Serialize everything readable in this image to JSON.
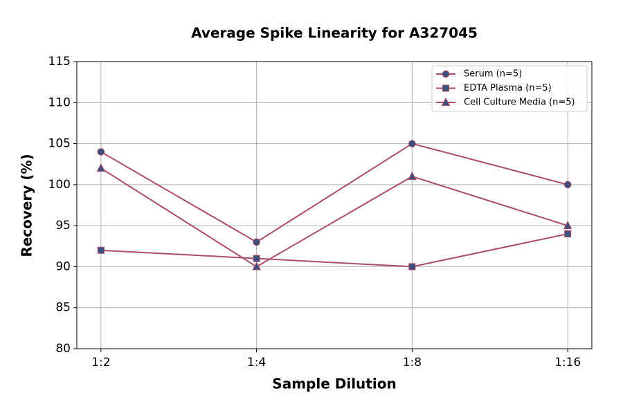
{
  "chart_data": {
    "type": "line",
    "title": "Average Spike Linearity for A327045",
    "x_label": "Sample Dilution",
    "y_label": "Recovery (%)",
    "categories": [
      "1:2",
      "1:4",
      "1:8",
      "1:16"
    ],
    "series": [
      {
        "name": "Serum (n=5)",
        "color": "#a94a6e",
        "marker": "circle",
        "marker_color": "#3d4f7c",
        "values": [
          104,
          93,
          105,
          100
        ]
      },
      {
        "name": "EDTA Plasma (n=5)",
        "color": "#a94a6e",
        "marker": "square",
        "marker_color": "#3d4f7c",
        "values": [
          92,
          91,
          90,
          94
        ]
      },
      {
        "name": "Cell Culture Media (n=5)",
        "color": "#a94a6e",
        "marker": "triangle",
        "marker_color": "#3d4f7c",
        "values": [
          102,
          90,
          101,
          95
        ]
      }
    ],
    "ylim": [
      80,
      115
    ],
    "yticks": [
      80,
      85,
      90,
      95,
      100,
      105,
      110,
      115
    ],
    "grid": true,
    "legend": "upper right"
  }
}
